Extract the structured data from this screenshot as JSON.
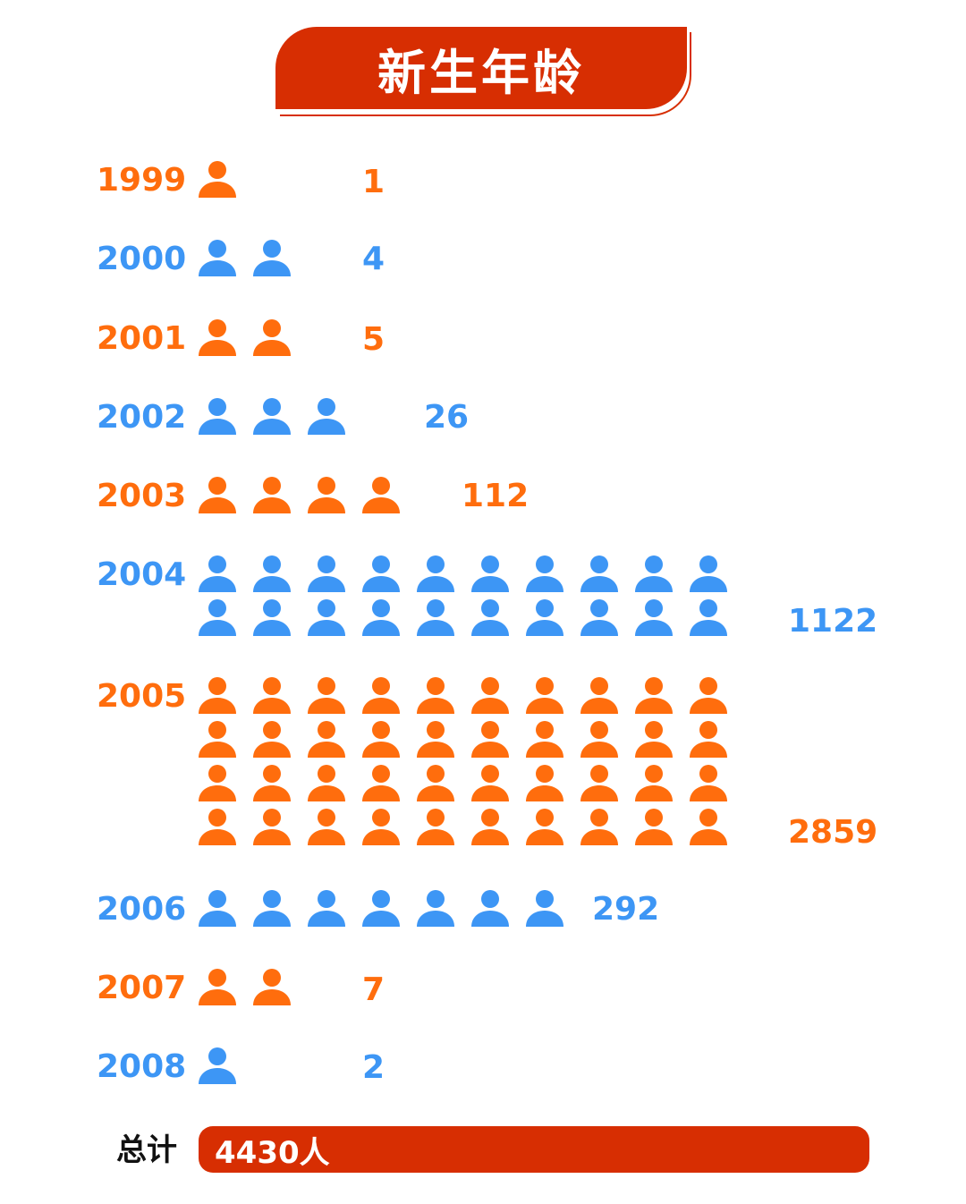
{
  "title": "新生年龄",
  "colors": {
    "orange": "#ff6d0d",
    "blue": "#3d96f5",
    "accent": "#d72e02"
  },
  "chart_data": {
    "type": "pictograph",
    "title": "新生年龄",
    "rows": [
      {
        "year": "1999",
        "count": "1",
        "icons": 1,
        "color": "orange"
      },
      {
        "year": "2000",
        "count": "4",
        "icons": 2,
        "color": "blue"
      },
      {
        "year": "2001",
        "count": "5",
        "icons": 2,
        "color": "orange"
      },
      {
        "year": "2002",
        "count": "26",
        "icons": 3,
        "color": "blue"
      },
      {
        "year": "2003",
        "count": "112",
        "icons": 4,
        "color": "orange"
      },
      {
        "year": "2004",
        "count": "1122",
        "icons": 20,
        "color": "blue"
      },
      {
        "year": "2005",
        "count": "2859",
        "icons": 40,
        "color": "orange"
      },
      {
        "year": "2006",
        "count": "292",
        "icons": 7,
        "color": "blue"
      },
      {
        "year": "2007",
        "count": "7",
        "icons": 2,
        "color": "orange"
      },
      {
        "year": "2008",
        "count": "2",
        "icons": 1,
        "color": "blue"
      }
    ],
    "total": {
      "label": "总计",
      "value": "4430人"
    }
  }
}
